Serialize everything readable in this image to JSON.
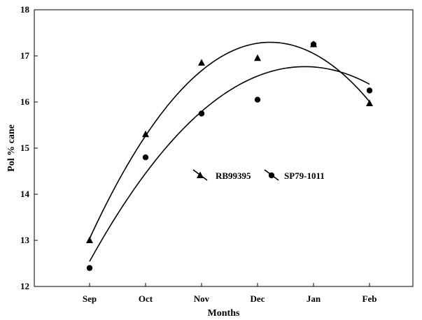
{
  "chart_data": {
    "type": "scatter",
    "title": "",
    "xlabel": "Months",
    "ylabel": "Pol % cane",
    "categories": [
      "Sep",
      "Oct",
      "Nov",
      "Dec",
      "Jan",
      "Feb"
    ],
    "ylim": [
      12,
      18
    ],
    "yticks": [
      "12",
      "13",
      "14",
      "15",
      "16",
      "17",
      "18"
    ],
    "grid": false,
    "legend_position": "center",
    "series": [
      {
        "name": "RB99395",
        "marker": "triangle",
        "color": "#000000",
        "values": [
          13.0,
          15.3,
          16.85,
          16.95,
          17.25,
          15.97
        ],
        "trend": "quadratic"
      },
      {
        "name": "SP79-1011",
        "marker": "circle",
        "color": "#000000",
        "values": [
          12.4,
          14.8,
          15.75,
          16.05,
          17.25,
          16.25
        ],
        "trend": "quadratic"
      }
    ]
  }
}
